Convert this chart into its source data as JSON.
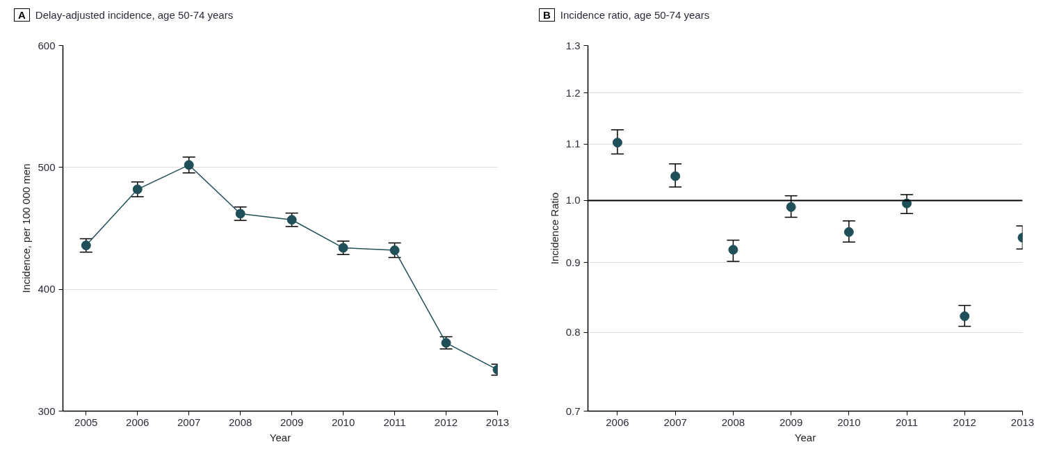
{
  "chart_data": [
    {
      "type": "line",
      "title": "Delay-adjusted incidence, age 50-74 years",
      "annotations": [
        "A"
      ],
      "xlabel": "Year",
      "ylabel": "Incidence, per 100 000 men",
      "x": [
        2005,
        2006,
        2007,
        2008,
        2009,
        2010,
        2011,
        2012,
        2013
      ],
      "series": [
        {
          "color": "#1f4f58",
          "values": [
            436,
            482,
            502,
            462,
            457,
            434,
            432,
            356,
            334
          ],
          "errors": [
            5.5,
            6,
            6.5,
            5.5,
            5.5,
            5.5,
            6,
            5,
            4.5
          ]
        }
      ],
      "xlim": [
        2004.55,
        2013
      ],
      "xticks": [
        2005,
        2006,
        2007,
        2008,
        2009,
        2010,
        2011,
        2012,
        2013
      ],
      "ylim": [
        300,
        600
      ],
      "yticks": [
        300,
        400,
        500,
        600
      ],
      "grid": "y",
      "marker": "circle",
      "line_style": "solid"
    },
    {
      "type": "scatter",
      "title": "Incidence ratio, age 50-74 years",
      "annotations": [
        "B"
      ],
      "xlabel": "Year",
      "ylabel": "Incidence Ratio",
      "x": [
        2006,
        2007,
        2008,
        2009,
        2010,
        2011,
        2012,
        2013
      ],
      "series": [
        {
          "color": "#1f4f58",
          "values": [
            1.103,
            1.042,
            0.92,
            0.989,
            0.948,
            0.995,
            0.822,
            0.939
          ],
          "errors": [
            [
              1.082,
              1.127
            ],
            [
              1.023,
              1.064
            ],
            [
              0.902,
              0.935
            ],
            [
              0.972,
              1.008
            ],
            [
              0.932,
              0.966
            ],
            [
              0.978,
              1.01
            ],
            [
              0.808,
              0.837
            ],
            [
              0.921,
              0.958
            ]
          ]
        }
      ],
      "xlim": [
        2005.49,
        2013
      ],
      "xticks": [
        2006,
        2007,
        2008,
        2009,
        2010,
        2011,
        2012,
        2013
      ],
      "ylim": [
        0.7,
        1.3
      ],
      "yticks": [
        0.7,
        0.8,
        0.9,
        {
          "value": 1.0,
          "label": "1.0"
        },
        1.1,
        1.2,
        1.3
      ],
      "log": "y",
      "ref_lines": [
        {
          "axis": "y",
          "value": 1.0,
          "color": "#000000"
        }
      ],
      "grid": "y",
      "marker": "circle"
    }
  ]
}
